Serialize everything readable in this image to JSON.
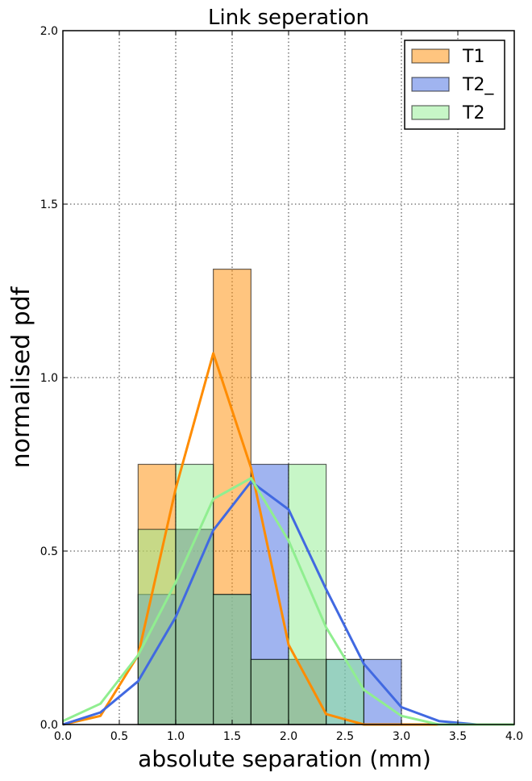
{
  "chart_data": {
    "type": "bar",
    "title": "Link seperation",
    "xlabel": "absolute separation (mm)",
    "ylabel": "normalised pdf",
    "xlim": [
      0.0,
      4.0
    ],
    "ylim": [
      0.0,
      2.0
    ],
    "xticks": [
      "0.0",
      "0.5",
      "1.0",
      "1.5",
      "2.0",
      "2.5",
      "3.0",
      "3.5",
      "4.0"
    ],
    "yticks": [
      "0.0",
      "0.5",
      "1.0",
      "1.5",
      "2.0"
    ],
    "grid": true,
    "legend_position": "top-right",
    "bin_edges": [
      0.667,
      1.0,
      1.333,
      1.667,
      2.0,
      2.333,
      2.667,
      3.0
    ],
    "series": [
      {
        "name": "T1",
        "color": "#ff8c00",
        "hist_values": [
          0.75,
          0.5625,
          1.3125,
          0.1875,
          0.1875,
          0.0,
          0.0
        ],
        "curve_x": [
          0.0,
          0.333,
          0.667,
          1.0,
          1.333,
          1.667,
          2.0,
          2.333,
          2.667,
          3.0,
          3.333,
          3.667,
          4.0
        ],
        "curve_y": [
          0.0,
          0.025,
          0.2,
          0.68,
          1.07,
          0.74,
          0.23,
          0.03,
          0.0,
          0.0,
          0.0,
          0.0,
          0.0
        ]
      },
      {
        "name": "T2_",
        "color": "#4169e1",
        "hist_values": [
          0.375,
          0.5625,
          0.375,
          0.75,
          0.1875,
          0.1875,
          0.1875
        ],
        "curve_x": [
          0.0,
          0.333,
          0.667,
          1.0,
          1.333,
          1.667,
          2.0,
          2.333,
          2.667,
          3.0,
          3.333,
          3.667,
          4.0
        ],
        "curve_y": [
          0.0,
          0.035,
          0.125,
          0.31,
          0.56,
          0.7,
          0.62,
          0.39,
          0.175,
          0.05,
          0.01,
          0.0,
          0.0
        ]
      },
      {
        "name": "T2",
        "color": "#90ee90",
        "hist_values": [
          0.5625,
          0.75,
          0.375,
          0.1875,
          0.75,
          0.1875,
          0.0
        ],
        "curve_x": [
          0.0,
          0.333,
          0.667,
          1.0,
          1.333,
          1.667,
          2.0,
          2.333,
          2.667,
          3.0,
          3.333,
          3.667,
          4.0
        ],
        "curve_y": [
          0.01,
          0.06,
          0.2,
          0.41,
          0.65,
          0.71,
          0.53,
          0.28,
          0.1,
          0.025,
          0.0,
          0.0,
          0.0
        ]
      }
    ]
  }
}
